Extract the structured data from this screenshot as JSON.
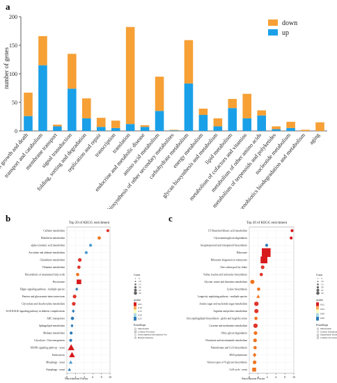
{
  "chart_data": [
    {
      "panel": "a",
      "type": "bar",
      "stacked": true,
      "ylabel": "number of genes",
      "ylim": [
        0,
        200
      ],
      "yticks": [
        0,
        50,
        100,
        150,
        200
      ],
      "legend": "top-right",
      "colors": {
        "down": "#f6a035",
        "up": "#1aa0e8"
      },
      "categories": [
        "cell growth and death",
        "transport and catabolism",
        "membrane transport",
        "signal transduction",
        "folding, sorting and degradation",
        "replication and repair",
        "transcription",
        "translation",
        "endocrine and metabolic disease",
        "amino acid metabolism",
        "biosynthesis of other secondary metabolites",
        "carbohydrate metabolism",
        "energy metabolism",
        "glycan biosynthesis and metabolism",
        "lipid metabolism",
        "metabolism of cofactors and vitamins",
        "metabolism of other amino acids",
        "metabolism of terpenoids and polyketides",
        "nucleotide metabolism",
        "xenobiotics biodegradation and metabolism",
        "aging"
      ],
      "series": [
        {
          "name": "up",
          "values": [
            26,
            115,
            8,
            74,
            22,
            7,
            5,
            12,
            7,
            35,
            1,
            83,
            28,
            8,
            40,
            22,
            27,
            3,
            5,
            0,
            0
          ]
        },
        {
          "name": "down",
          "values": [
            41,
            51,
            3,
            61,
            35,
            16,
            13,
            170,
            3,
            60,
            1,
            76,
            11,
            14,
            16,
            43,
            9,
            5,
            11,
            2,
            15
          ]
        }
      ]
    },
    {
      "panel": "b",
      "type": "scatter",
      "title": "Top 20 of KEGG enrichment",
      "xlabel": "Enrichment Factor",
      "xlim": [
        0,
        10
      ],
      "xticks": [
        0,
        2,
        4,
        6,
        8,
        10
      ],
      "categories": [
        "Caffeine metabolism",
        "Riboflavin metabolism",
        "alpha-Linolenic acid metabolism",
        "Ascorbate and aldarate metabolism",
        "Glutathione metabolism",
        "Thiamine metabolism",
        "Biosynthesis of unsaturated fatty acids",
        "Peroxisome",
        "Hippo signaling pathway - multiple species",
        "Pentose and glucuronate interconversions",
        "Glyoxylate and dicarboxylate metabolism",
        "AGE-RAGE signaling pathway in diabetic complications",
        "ABC transporters",
        "Sphingolipid metabolism",
        "Methane metabolism",
        "Glycolysis / Gluconeogenesis",
        "MAPK signaling pathway - yeast",
        "Endocytosis",
        "Mitophagy - yeast",
        "Autophagy - yeast"
      ],
      "points": [
        {
          "x": 9.5,
          "count": 2,
          "qvalue": 0.05,
          "shape": "circle"
        },
        {
          "x": 7.5,
          "count": 3,
          "qvalue": 0.1,
          "shape": "circle"
        },
        {
          "x": 5.5,
          "count": 2,
          "qvalue": 0.15,
          "shape": "circle"
        },
        {
          "x": 4.5,
          "count": 2,
          "qvalue": 0.15,
          "shape": "circle"
        },
        {
          "x": 3.0,
          "count": 4,
          "qvalue": 0.05,
          "shape": "circle"
        },
        {
          "x": 2.8,
          "count": 3,
          "qvalue": 0.05,
          "shape": "circle"
        },
        {
          "x": 2.5,
          "count": 3,
          "qvalue": 0.1,
          "shape": "circle"
        },
        {
          "x": 2.8,
          "count": 8,
          "qvalue": 0.02,
          "shape": "square"
        },
        {
          "x": 2.3,
          "count": 2,
          "qvalue": 0.2,
          "shape": "diamond"
        },
        {
          "x": 1.8,
          "count": 4,
          "qvalue": 0.05,
          "shape": "circle"
        },
        {
          "x": 1.6,
          "count": 4,
          "qvalue": 0.05,
          "shape": "circle"
        },
        {
          "x": 1.5,
          "count": 2,
          "qvalue": 0.2,
          "shape": "diamond"
        },
        {
          "x": 1.3,
          "count": 3,
          "qvalue": 0.2,
          "shape": "circle"
        },
        {
          "x": 1.2,
          "count": 2,
          "qvalue": 0.25,
          "shape": "diamond"
        },
        {
          "x": 1.0,
          "count": 2,
          "qvalue": 0.25,
          "shape": "circle"
        },
        {
          "x": 0.9,
          "count": 2,
          "qvalue": 0.25,
          "shape": "circle"
        },
        {
          "x": 1.0,
          "count": 16,
          "qvalue": 0.01,
          "shape": "triangle"
        },
        {
          "x": 1.2,
          "count": 12,
          "qvalue": 0.02,
          "shape": "triangle"
        },
        {
          "x": 0.9,
          "count": 3,
          "qvalue": 0.15,
          "shape": "triangle"
        },
        {
          "x": 0.6,
          "count": 2,
          "qvalue": 0.2,
          "shape": "triangle"
        }
      ],
      "legend": {
        "count_title": "Count",
        "count_labels": [
          "5",
          "10",
          "15",
          "20",
          "25",
          "30"
        ],
        "qvalue_title": "qvalue",
        "qvalue_labels": [
          "0.05",
          "0.10",
          "0.15",
          "0.20",
          "0.25"
        ],
        "qvalue_colors": [
          "#d7191c",
          "#fdae61",
          "#ffffbf",
          "#abd9e9",
          "#2c7bb6"
        ],
        "pathclass_title": "PointShape",
        "pathclass": [
          {
            "shape": "circle",
            "label": "Metabolism"
          },
          {
            "shape": "square",
            "label": "Cellular Processes"
          },
          {
            "shape": "diamond",
            "label": "Environmental Information Processing"
          },
          {
            "shape": "triangle",
            "label": "Human Diseases"
          }
        ]
      }
    },
    {
      "panel": "c",
      "type": "scatter",
      "title": "Top 20 of KEGG enrichment",
      "xlabel": "Enrichment Factor",
      "xlim": [
        0,
        10
      ],
      "xticks": [
        0,
        2,
        4,
        6,
        8,
        10
      ],
      "categories": [
        "C5-Branched dibasic acid metabolism",
        "Glycosaminoglycan degradation",
        "Sesquiterpenoid and triterpenoid biosynthesis",
        "Ribosome",
        "Ribosome biogenesis in eukaryotes",
        "One carbon pool by folate",
        "Valine, leucine and isoleucine biosynthesis",
        "Glycine, serine and threonine metabolism",
        "Lysine biosynthesis",
        "Longevity regulating pathway - multiple species",
        "Amino sugar and nucleotide sugar metabolism",
        "Arginine and proline metabolism",
        "Glycosphingolipid biosynthesis - globo and isoglobo series",
        "Cysteine and methionine metabolism",
        "Other glycan degradation",
        "Nicotinate and nicotinamide metabolism",
        "Pantothenate and CoA biosynthesis",
        "RNA polymerase",
        "Various types of N-glycan biosynthesis",
        "Cell cycle - yeast"
      ],
      "points": [
        {
          "x": 9.6,
          "count": 2,
          "qvalue": 0.01,
          "shape": "circle"
        },
        {
          "x": 9.4,
          "count": 2,
          "qvalue": 0.03,
          "shape": "circle"
        },
        {
          "x": 3.9,
          "count": 2,
          "qvalue": 0.2,
          "shape": "circle"
        },
        {
          "x": 3.8,
          "count": 40,
          "qvalue": 0.005,
          "shape": "square"
        },
        {
          "x": 3.3,
          "count": 22,
          "qvalue": 0.005,
          "shape": "square"
        },
        {
          "x": 3.0,
          "count": 4,
          "qvalue": 0.04,
          "shape": "circle"
        },
        {
          "x": 2.7,
          "count": 3,
          "qvalue": 0.06,
          "shape": "circle"
        },
        {
          "x": 0.7,
          "count": 6,
          "qvalue": 0.08,
          "shape": "circle"
        },
        {
          "x": 2.1,
          "count": 3,
          "qvalue": 0.08,
          "shape": "circle"
        },
        {
          "x": 2.0,
          "count": 3,
          "qvalue": 0.08,
          "shape": "triangle"
        },
        {
          "x": 1.6,
          "count": 7,
          "qvalue": 0.06,
          "shape": "circle"
        },
        {
          "x": 1.6,
          "count": 6,
          "qvalue": 0.06,
          "shape": "circle"
        },
        {
          "x": 1.5,
          "count": 3,
          "qvalue": 0.08,
          "shape": "circle"
        },
        {
          "x": 1.4,
          "count": 7,
          "qvalue": 0.06,
          "shape": "circle"
        },
        {
          "x": 1.4,
          "count": 4,
          "qvalue": 0.08,
          "shape": "circle"
        },
        {
          "x": 1.3,
          "count": 4,
          "qvalue": 0.08,
          "shape": "circle"
        },
        {
          "x": 1.3,
          "count": 3,
          "qvalue": 0.08,
          "shape": "circle"
        },
        {
          "x": 1.2,
          "count": 4,
          "qvalue": 0.08,
          "shape": "diamond"
        },
        {
          "x": 1.2,
          "count": 4,
          "qvalue": 0.08,
          "shape": "circle"
        },
        {
          "x": 1.1,
          "count": 5,
          "qvalue": 0.08,
          "shape": "square"
        }
      ],
      "legend": {
        "count_title": "Count",
        "count_labels": [
          "5",
          "10",
          "15",
          "20",
          "25",
          "30"
        ],
        "qvalue_title": "qvalue",
        "qvalue_labels": [
          "0.02",
          "0.04",
          "0.06",
          "0.08"
        ],
        "qvalue_colors": [
          "#d7191c",
          "#fdae61",
          "#ffffbf",
          "#abd9e9",
          "#2c7bb6"
        ],
        "pathclass_title": "PointShape",
        "pathclass": [
          {
            "shape": "circle",
            "label": "Metabolism"
          },
          {
            "shape": "diamond",
            "label": "Genetic Information Processing"
          },
          {
            "shape": "triangle",
            "label": "Organismal Systems"
          },
          {
            "shape": "square",
            "label": "Cellular Processes"
          }
        ]
      }
    }
  ],
  "panels": {
    "a": "a",
    "b": "b",
    "c": "c"
  }
}
